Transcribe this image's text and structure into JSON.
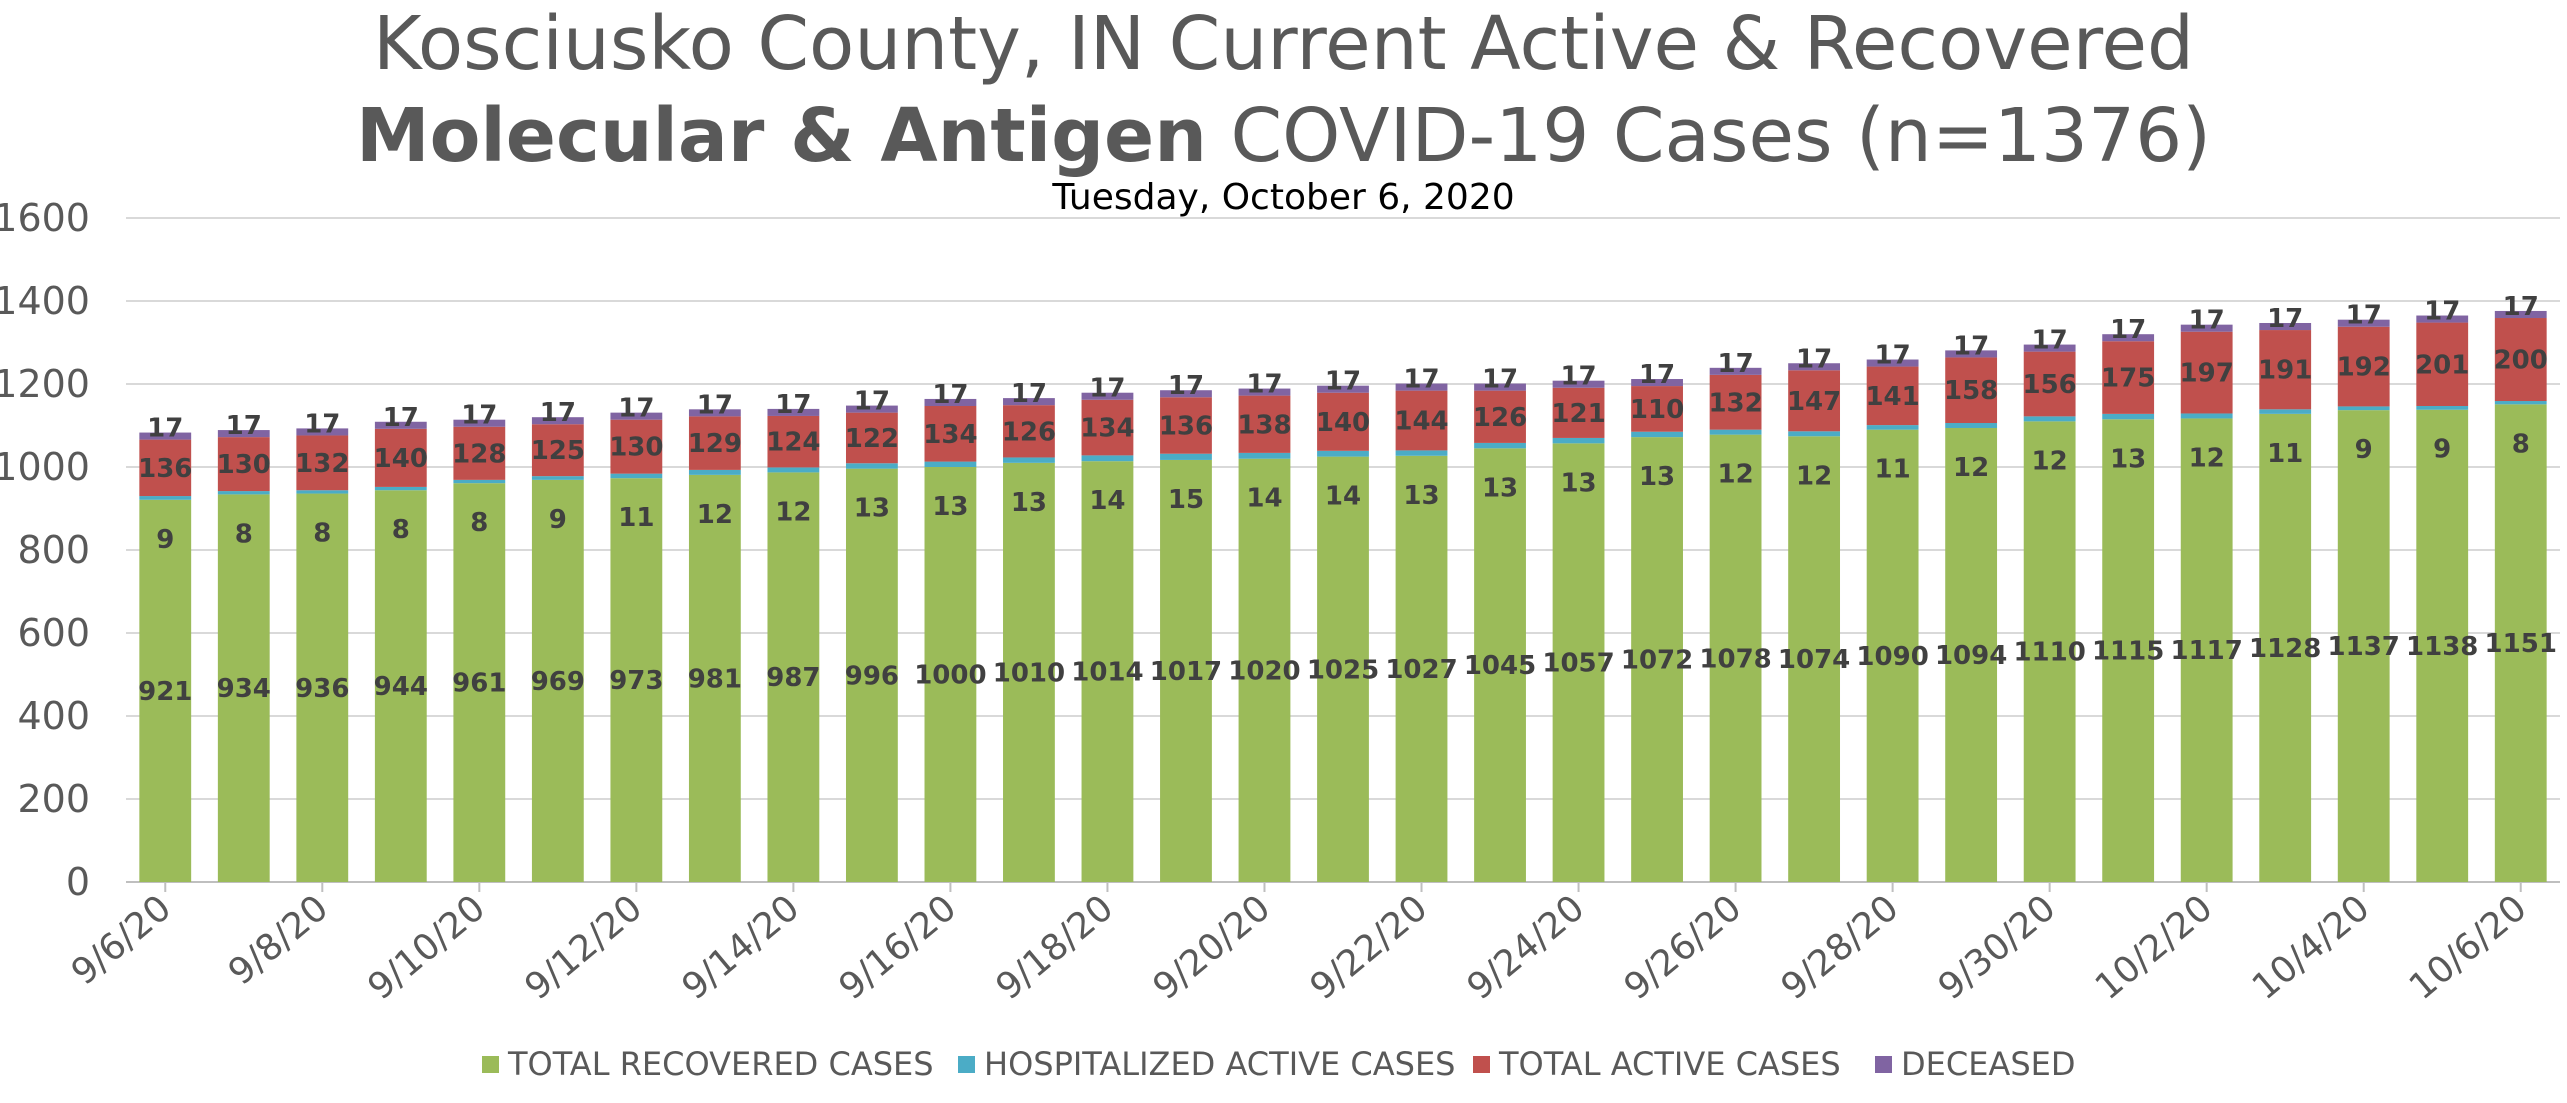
{
  "chart_data": {
    "type": "bar",
    "stacked": true,
    "title_line1": "Kosciusko County, IN Current Active & Recovered",
    "title_line2_bold": "Molecular & Antigen",
    "title_line2_rest": " COVID-19 Cases (n=1376)",
    "subtitle": "Tuesday, October 6, 2020",
    "xlabel": "",
    "ylabel": "",
    "ylim": [
      0,
      1600
    ],
    "yticks": [
      0,
      200,
      400,
      600,
      800,
      1000,
      1200,
      1400,
      1600
    ],
    "grid": true,
    "legend_position": "bottom",
    "categories": [
      "9/6/20",
      "9/7/20",
      "9/8/20",
      "9/9/20",
      "9/10/20",
      "9/11/20",
      "9/12/20",
      "9/13/20",
      "9/14/20",
      "9/15/20",
      "9/16/20",
      "9/17/20",
      "9/18/20",
      "9/19/20",
      "9/20/20",
      "9/21/20",
      "9/22/20",
      "9/23/20",
      "9/24/20",
      "9/25/20",
      "9/26/20",
      "9/27/20",
      "9/28/20",
      "9/29/20",
      "9/30/20",
      "10/1/20",
      "10/2/20",
      "10/3/20",
      "10/4/20",
      "10/5/20",
      "10/6/20"
    ],
    "x_tick_labels": [
      "9/6/20",
      "9/8/20",
      "9/10/20",
      "9/12/20",
      "9/14/20",
      "9/16/20",
      "9/18/20",
      "9/20/20",
      "9/22/20",
      "9/24/20",
      "9/26/20",
      "9/28/20",
      "9/30/20",
      "10/2/20",
      "10/4/20",
      "10/6/20"
    ],
    "series": [
      {
        "name": "TOTAL RECOVERED CASES",
        "color": "#9bbb59",
        "values": [
          921,
          934,
          936,
          944,
          961,
          969,
          973,
          981,
          987,
          996,
          1000,
          1010,
          1014,
          1017,
          1020,
          1025,
          1027,
          1045,
          1057,
          1072,
          1078,
          1074,
          1090,
          1094,
          1110,
          1115,
          1117,
          1128,
          1137,
          1138,
          1151
        ]
      },
      {
        "name": "HOSPITALIZED ACTIVE CASES",
        "color": "#4bacc6",
        "values": [
          9,
          8,
          8,
          8,
          8,
          9,
          11,
          12,
          12,
          13,
          13,
          13,
          14,
          15,
          14,
          14,
          13,
          13,
          13,
          13,
          12,
          12,
          11,
          12,
          12,
          13,
          12,
          11,
          9,
          9,
          8
        ]
      },
      {
        "name": "TOTAL ACTIVE CASES",
        "color": "#c0504d",
        "values": [
          136,
          130,
          132,
          140,
          128,
          125,
          130,
          129,
          124,
          122,
          134,
          126,
          134,
          136,
          138,
          140,
          144,
          126,
          121,
          110,
          132,
          147,
          141,
          158,
          156,
          175,
          197,
          191,
          192,
          201,
          200
        ]
      },
      {
        "name": "DECEASED",
        "color": "#8064a2",
        "values": [
          17,
          17,
          17,
          17,
          17,
          17,
          17,
          17,
          17,
          17,
          17,
          17,
          17,
          17,
          17,
          17,
          17,
          17,
          17,
          17,
          17,
          17,
          17,
          17,
          17,
          17,
          17,
          17,
          17,
          17,
          17
        ]
      }
    ]
  }
}
